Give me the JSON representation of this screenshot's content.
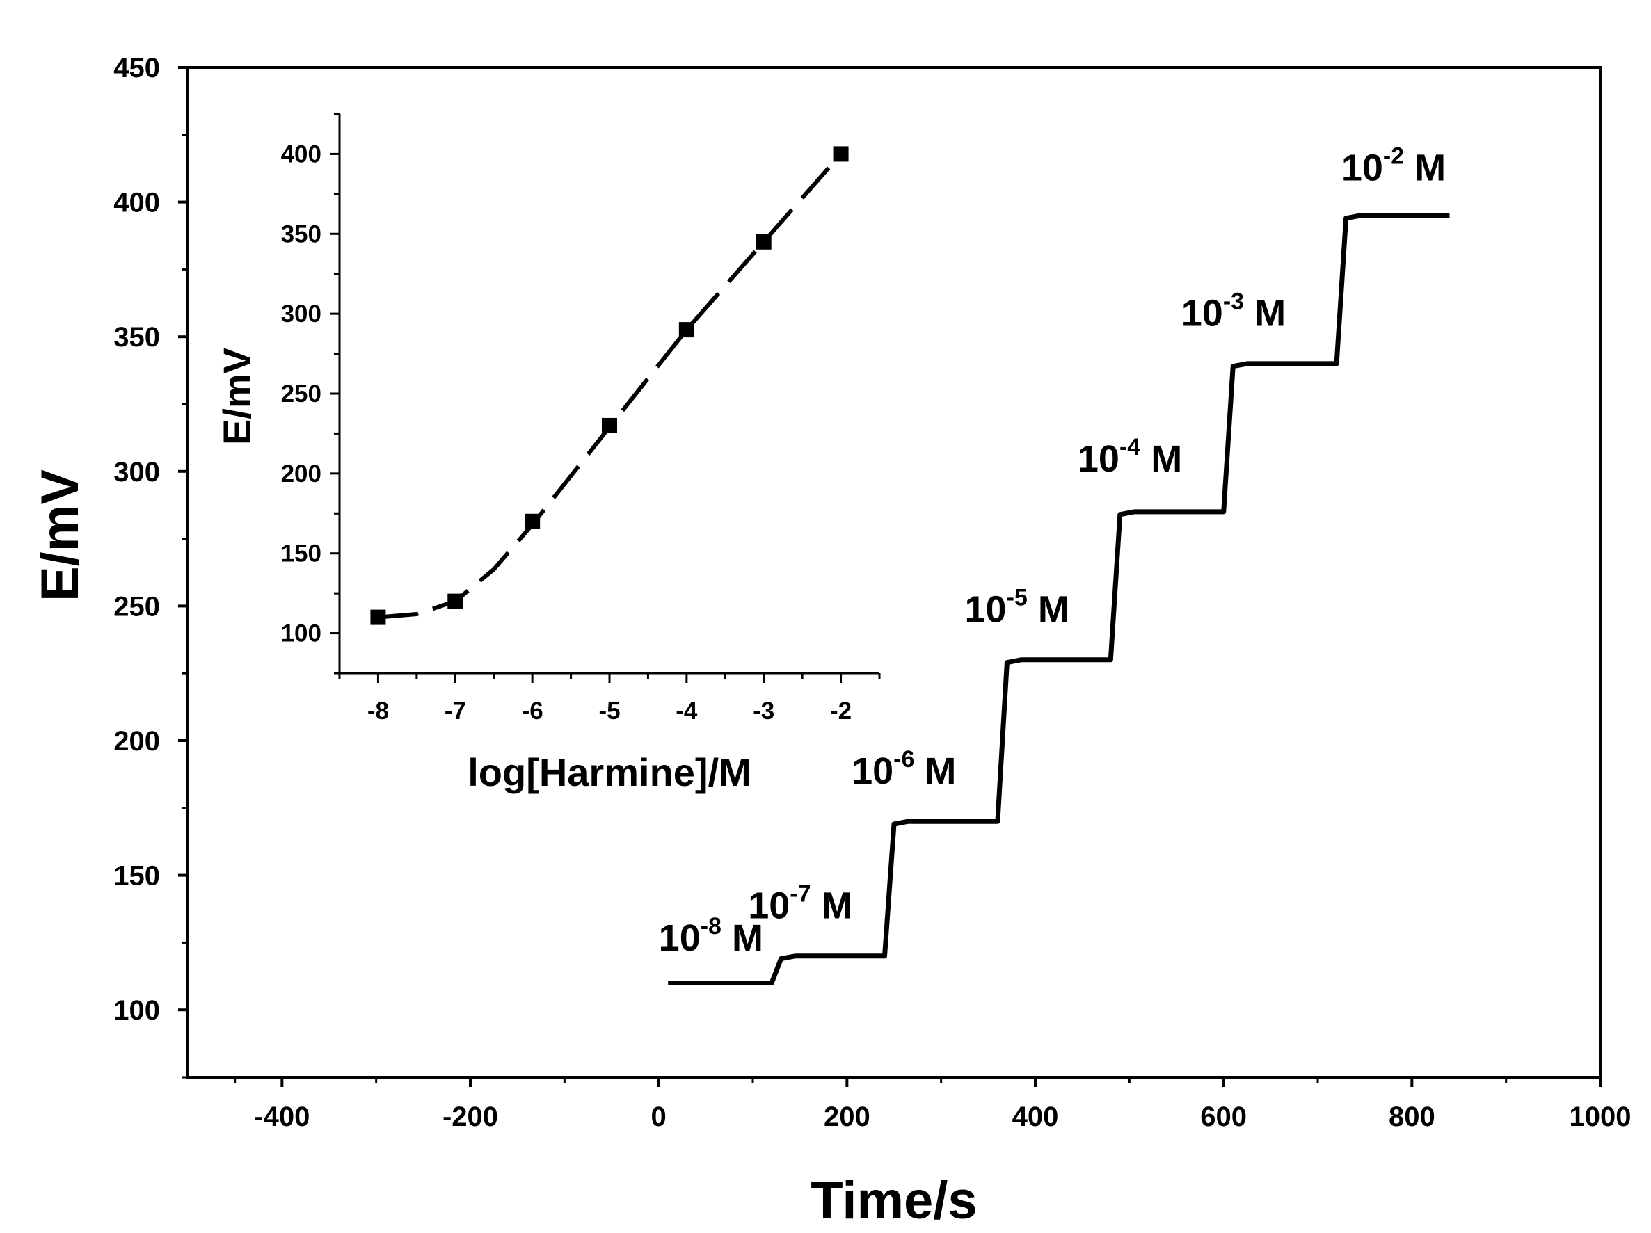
{
  "chart_data": [
    {
      "type": "line",
      "xlabel": "Time/s",
      "ylabel": "E/mV",
      "xlim": [
        -500,
        1000
      ],
      "ylim": [
        75,
        450
      ],
      "xticks": [
        -400,
        -200,
        0,
        200,
        400,
        600,
        800,
        1000
      ],
      "yticks": [
        100,
        150,
        200,
        250,
        300,
        350,
        400,
        450
      ],
      "grid": false,
      "series": [
        {
          "x": [
            10,
            120,
            130,
            145,
            240,
            250,
            265,
            360,
            370,
            385,
            480,
            490,
            505,
            600,
            610,
            625,
            720,
            730,
            745,
            840
          ],
          "y": [
            110,
            110,
            119,
            120,
            120,
            169,
            170,
            170,
            229,
            230,
            230,
            284,
            285,
            285,
            339,
            340,
            340,
            394,
            395,
            395
          ]
        }
      ],
      "annotations": [
        {
          "base": "10",
          "exp": "-8",
          "unit": " M",
          "x": 0,
          "y": 122
        },
        {
          "base": "10",
          "exp": "-7",
          "unit": " M",
          "x": 95,
          "y": 134
        },
        {
          "base": "10",
          "exp": "-6",
          "unit": " M",
          "x": 205,
          "y": 184
        },
        {
          "base": "10",
          "exp": "-5",
          "unit": " M",
          "x": 325,
          "y": 244
        },
        {
          "base": "10",
          "exp": "-4",
          "unit": " M",
          "x": 445,
          "y": 300
        },
        {
          "base": "10",
          "exp": "-3",
          "unit": " M",
          "x": 555,
          "y": 354
        },
        {
          "base": "10",
          "exp": "-2",
          "unit": " M",
          "x": 725,
          "y": 408
        }
      ]
    },
    {
      "type": "scatter",
      "inset": true,
      "xlabel": "log[Harmine]/M",
      "ylabel": "E/mV",
      "xlim": [
        -8.5,
        -1.5
      ],
      "ylim": [
        75,
        425
      ],
      "xticks": [
        -8,
        -7,
        -6,
        -5,
        -4,
        -3,
        -2
      ],
      "yticks": [
        100,
        150,
        200,
        250,
        300,
        350,
        400
      ],
      "grid": false,
      "points": {
        "x": [
          -8,
          -7,
          -6,
          -5,
          -4,
          -3,
          -2
        ],
        "y": [
          110,
          120,
          170,
          230,
          290,
          345,
          400
        ]
      },
      "fit_line": {
        "style": "dashed",
        "x": [
          -8,
          -7.5,
          -7,
          -6.5,
          -6,
          -5,
          -4,
          -3,
          -2
        ],
        "y": [
          110,
          112,
          120,
          140,
          168,
          229,
          290,
          345,
          400
        ]
      }
    }
  ]
}
